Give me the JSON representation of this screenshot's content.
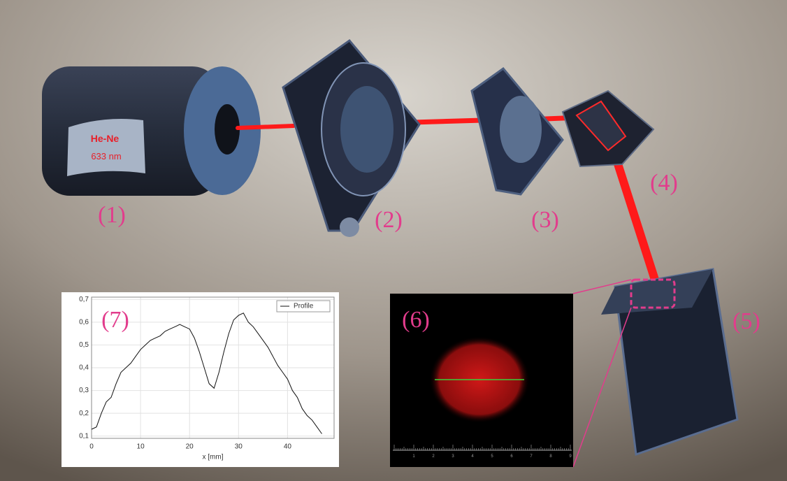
{
  "labels": [
    "(1)",
    "(2)",
    "(3)",
    "(4)",
    "(5)",
    "(6)",
    "(7)"
  ],
  "laser": {
    "name": "He-Ne",
    "wavelength": "633 nm"
  },
  "camera_ruler": [
    "1",
    "2",
    "3",
    "4",
    "5",
    "6",
    "7",
    "8",
    "9"
  ],
  "chart_data": {
    "type": "line",
    "xlabel": "x [mm]",
    "legend": "upper right",
    "grid": true,
    "x": [
      0,
      1,
      2,
      3,
      4,
      5,
      6,
      7,
      8,
      9,
      10,
      11,
      12,
      13,
      14,
      15,
      16,
      17,
      18,
      19,
      20,
      21,
      22,
      23,
      24,
      25,
      26,
      27,
      28,
      29,
      30,
      31,
      32,
      33,
      34,
      35,
      36,
      37,
      38,
      39,
      40,
      41,
      42,
      43,
      44,
      45,
      46,
      47
    ],
    "series": [
      {
        "name": "Profile",
        "color": "#111111",
        "values": [
          0.13,
          0.14,
          0.2,
          0.25,
          0.27,
          0.33,
          0.38,
          0.4,
          0.42,
          0.45,
          0.48,
          0.5,
          0.52,
          0.53,
          0.54,
          0.56,
          0.57,
          0.58,
          0.59,
          0.58,
          0.57,
          0.53,
          0.47,
          0.4,
          0.33,
          0.31,
          0.38,
          0.47,
          0.55,
          0.61,
          0.63,
          0.64,
          0.6,
          0.58,
          0.55,
          0.52,
          0.49,
          0.45,
          0.41,
          0.38,
          0.35,
          0.3,
          0.27,
          0.22,
          0.19,
          0.17,
          0.14,
          0.11
        ]
      }
    ],
    "xlim": [
      0,
      49.5
    ],
    "ylim": [
      0.09,
      0.71
    ],
    "xticks": [
      0,
      10,
      20,
      30,
      40
    ],
    "yticks": [
      {
        "value": 0.1,
        "label": "0,1"
      },
      {
        "value": 0.2,
        "label": "0,2"
      },
      {
        "value": 0.3,
        "label": "0,3"
      },
      {
        "value": 0.4,
        "label": "0,4"
      },
      {
        "value": 0.5,
        "label": "0,5"
      },
      {
        "value": 0.6,
        "label": "0,6"
      },
      {
        "value": 0.7,
        "label": "0,7"
      }
    ]
  }
}
